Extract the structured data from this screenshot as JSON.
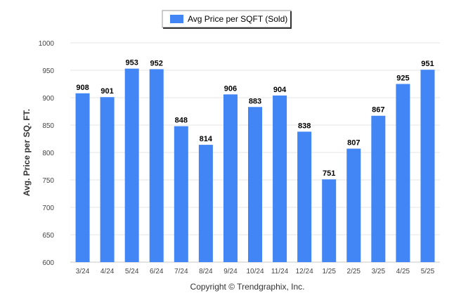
{
  "chart_data": {
    "type": "bar",
    "legend": {
      "label": "Avg Price per SQFT (Sold)",
      "position": "top-center"
    },
    "ylabel": "Avg. Price per SQ. FT.",
    "xlabel": "",
    "credit": "Copyright © Trendgraphix, Inc.",
    "ylim": [
      600,
      1000
    ],
    "yticks": [
      600,
      650,
      700,
      750,
      800,
      850,
      900,
      950,
      1000
    ],
    "grid": true,
    "bar_color": "#4285f4",
    "categories": [
      "3/24",
      "4/24",
      "5/24",
      "6/24",
      "7/24",
      "8/24",
      "9/24",
      "10/24",
      "11/24",
      "12/24",
      "1/25",
      "2/25",
      "3/25",
      "4/25",
      "5/25"
    ],
    "series": [
      {
        "name": "Avg Price per SQFT (Sold)",
        "values": [
          908,
          901,
          953,
          952,
          848,
          814,
          906,
          883,
          904,
          838,
          751,
          807,
          867,
          925,
          951
        ]
      }
    ]
  }
}
